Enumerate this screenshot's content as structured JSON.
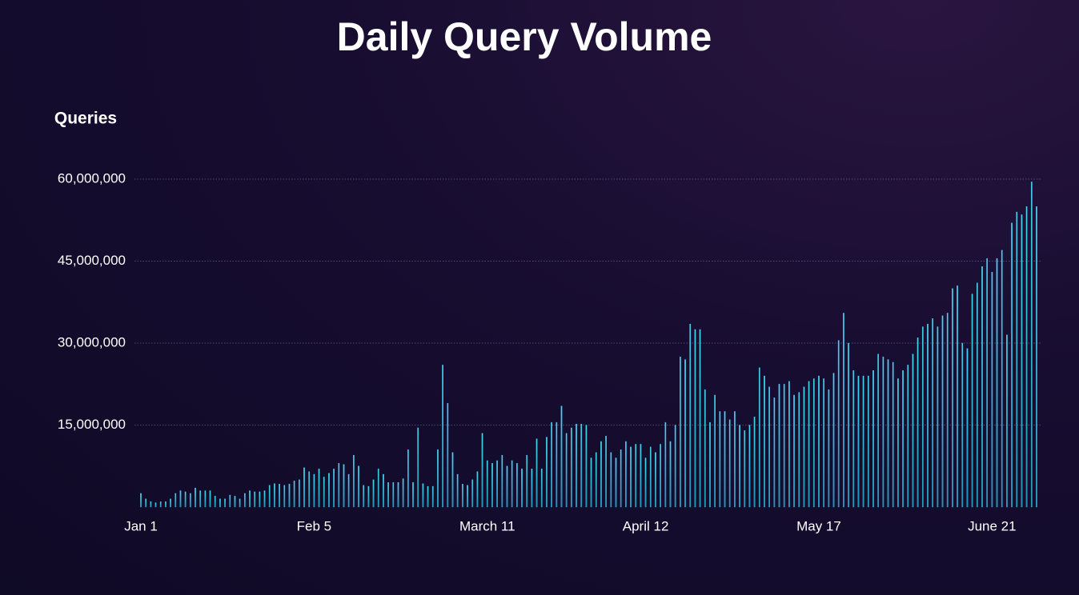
{
  "chart_data": {
    "type": "bar",
    "title": "Daily Query Volume",
    "y_label": "Queries",
    "categories": [
      "Jan 1",
      null,
      null,
      null,
      null,
      null,
      null,
      null,
      null,
      null,
      null,
      null,
      null,
      null,
      null,
      null,
      null,
      null,
      null,
      null,
      null,
      null,
      null,
      null,
      null,
      null,
      null,
      null,
      null,
      null,
      null,
      null,
      null,
      null,
      null,
      "Feb 5",
      null,
      null,
      null,
      null,
      null,
      null,
      null,
      null,
      null,
      null,
      null,
      null,
      null,
      null,
      null,
      null,
      null,
      null,
      null,
      null,
      null,
      null,
      null,
      null,
      null,
      null,
      null,
      null,
      null,
      null,
      null,
      null,
      null,
      null,
      "March 11",
      null,
      null,
      null,
      null,
      null,
      null,
      null,
      null,
      null,
      null,
      null,
      null,
      null,
      null,
      null,
      null,
      null,
      null,
      null,
      null,
      null,
      null,
      null,
      null,
      null,
      null,
      null,
      null,
      null,
      null,
      null,
      "April 12",
      null,
      null,
      null,
      null,
      null,
      null,
      null,
      null,
      null,
      null,
      null,
      null,
      null,
      null,
      null,
      null,
      null,
      null,
      null,
      null,
      null,
      null,
      null,
      null,
      null,
      null,
      null,
      null,
      null,
      null,
      null,
      null,
      null,
      null,
      "May 17",
      null,
      null,
      null,
      null,
      null,
      null,
      null,
      null,
      null,
      null,
      null,
      null,
      null,
      null,
      null,
      null,
      null,
      null,
      null,
      null,
      null,
      null,
      null,
      null,
      null,
      null,
      null,
      null,
      null,
      null,
      null,
      null,
      null,
      null,
      "June 21",
      null,
      null,
      null,
      null,
      null,
      null,
      null,
      null,
      null
    ],
    "values": [
      2500000,
      1500000,
      1000000,
      800000,
      1000000,
      1000000,
      1500000,
      2500000,
      3000000,
      2800000,
      2500000,
      3500000,
      3000000,
      3000000,
      3000000,
      2000000,
      1500000,
      1500000,
      2200000,
      2000000,
      1500000,
      2500000,
      3000000,
      2800000,
      2800000,
      3000000,
      4000000,
      4300000,
      4200000,
      4000000,
      4200000,
      4800000,
      5000000,
      7200000,
      6500000,
      6000000,
      7000000,
      5500000,
      6200000,
      7000000,
      8000000,
      7800000,
      6000000,
      9500000,
      7500000,
      4000000,
      3800000,
      5000000,
      7000000,
      6000000,
      4500000,
      4500000,
      4500000,
      5200000,
      10500000,
      4500000,
      14500000,
      4300000,
      3800000,
      3800000,
      10500000,
      26000000,
      19000000,
      10000000,
      6000000,
      4200000,
      4000000,
      5000000,
      6500000,
      13500000,
      8500000,
      8000000,
      8500000,
      9500000,
      7500000,
      8500000,
      8000000,
      7000000,
      9500000,
      7000000,
      12500000,
      7000000,
      12800000,
      15500000,
      15500000,
      18500000,
      13500000,
      14500000,
      15200000,
      15200000,
      15000000,
      9000000,
      10000000,
      12000000,
      13000000,
      10000000,
      9000000,
      10500000,
      12000000,
      11000000,
      11500000,
      11500000,
      9000000,
      11000000,
      10000000,
      11500000,
      15500000,
      12000000,
      15000000,
      27500000,
      27000000,
      33500000,
      32500000,
      32500000,
      21500000,
      15500000,
      20500000,
      17500000,
      17500000,
      16000000,
      17500000,
      15000000,
      14000000,
      15000000,
      16500000,
      25500000,
      24000000,
      22000000,
      20000000,
      22500000,
      22500000,
      23000000,
      20500000,
      21000000,
      22000000,
      23000000,
      23500000,
      24000000,
      23500000,
      21500000,
      24500000,
      30500000,
      35500000,
      30000000,
      25000000,
      24000000,
      24000000,
      24000000,
      25000000,
      28000000,
      27500000,
      27000000,
      26500000,
      23500000,
      25000000,
      26000000,
      28000000,
      31000000,
      33000000,
      33500000,
      34500000,
      33000000,
      35000000,
      35500000,
      40000000,
      40500000,
      30000000,
      29000000,
      39000000,
      41000000,
      44000000,
      45500000,
      43000000,
      45500000,
      47000000,
      31500000,
      52000000,
      54000000,
      53500000,
      55000000,
      59500000,
      55000000
    ],
    "color": "#3cc8e6",
    "ylim": [
      0,
      60000000
    ],
    "yticks": [
      {
        "value": 15000000,
        "label": "15,000,000"
      },
      {
        "value": 30000000,
        "label": "30,000,000"
      },
      {
        "value": 45000000,
        "label": "45,000,000"
      },
      {
        "value": 60000000,
        "label": "60,000,000"
      }
    ],
    "grid": true
  }
}
